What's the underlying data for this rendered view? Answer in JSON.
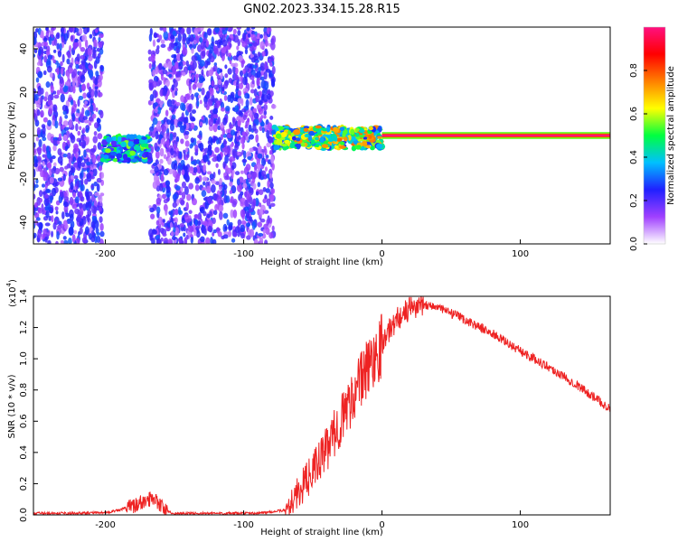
{
  "title": "GN02.2023.334.15.28.R15",
  "chart_data": [
    {
      "type": "heatmap",
      "xlabel": "Height of straight line (km)",
      "ylabel": "Frequency (Hz)",
      "xlim": [
        -252,
        165
      ],
      "ylim": [
        -50,
        50
      ],
      "xticks": [
        -200,
        -100,
        0,
        100
      ],
      "xtick_labels": [
        "-200",
        "-100",
        "0",
        "100"
      ],
      "yticks": [
        -40,
        -20,
        0,
        20,
        40
      ],
      "ytick_labels": [
        "-40",
        "-20",
        "0",
        "20",
        "40"
      ],
      "colorbar": {
        "label": "Normalized spectral amplitude",
        "range": [
          0,
          1
        ],
        "ticks": [
          0.0,
          0.2,
          0.4,
          0.6,
          0.8
        ],
        "tick_labels": [
          "0.0",
          "0.2",
          "0.4",
          "0.6",
          "0.8"
        ],
        "colors": [
          "#ffffff",
          "#a040ff",
          "#2020ff",
          "#00c0ff",
          "#00ff40",
          "#ffff00",
          "#ff8000",
          "#ff0000",
          "#ff1080"
        ]
      },
      "regions": [
        {
          "x": [
            -252,
            -202
          ],
          "freq": [
            -50,
            50
          ],
          "amplitude": 0.25,
          "description": "noise"
        },
        {
          "x": [
            -202,
            -168
          ],
          "freq": [
            -12,
            0
          ],
          "amplitude": 0.45,
          "description": "signal cluster"
        },
        {
          "x": [
            -168,
            -78
          ],
          "freq": [
            -50,
            50
          ],
          "amplitude": 0.25,
          "description": "noise"
        },
        {
          "x": [
            -78,
            0
          ],
          "freq": [
            -6,
            4
          ],
          "amplitude": 0.6,
          "description": "signal band"
        },
        {
          "x": [
            0,
            165
          ],
          "freq": [
            -1,
            1
          ],
          "amplitude": 1.0,
          "description": "constant tone"
        }
      ]
    },
    {
      "type": "line",
      "xlabel": "Height of straight line (km)",
      "ylabel": "SNR (10 * v/v)",
      "multiplier_label": "(x10",
      "multiplier_exp": "4",
      "xlim": [
        -252,
        165
      ],
      "ylim": [
        0,
        1.4
      ],
      "xticks": [
        -200,
        -100,
        0,
        100
      ],
      "xtick_labels": [
        "-200",
        "-100",
        "0",
        "100"
      ],
      "yticks": [
        0.0,
        0.2,
        0.4,
        0.6,
        0.8,
        1.0,
        1.2,
        1.4
      ],
      "ytick_labels": [
        "0.0",
        "0.2",
        "0.4",
        "0.6",
        "0.8",
        "1.0",
        "1.2",
        "1.4"
      ],
      "series": [
        {
          "color": "#ee2222",
          "x": [
            -252,
            -220,
            -200,
            -190,
            -180,
            -170,
            -165,
            -160,
            -155,
            -150,
            -120,
            -90,
            -70,
            -60,
            -50,
            -40,
            -30,
            -20,
            -10,
            0,
            10,
            20,
            30,
            40,
            60,
            80,
            100,
            120,
            140,
            160,
            165
          ],
          "y": [
            0.01,
            0.01,
            0.015,
            0.03,
            0.06,
            0.09,
            0.12,
            0.06,
            0.02,
            0.01,
            0.01,
            0.01,
            0.03,
            0.15,
            0.28,
            0.42,
            0.6,
            0.78,
            0.95,
            1.1,
            1.25,
            1.32,
            1.35,
            1.33,
            1.25,
            1.16,
            1.05,
            0.95,
            0.84,
            0.71,
            0.68
          ]
        }
      ]
    }
  ]
}
